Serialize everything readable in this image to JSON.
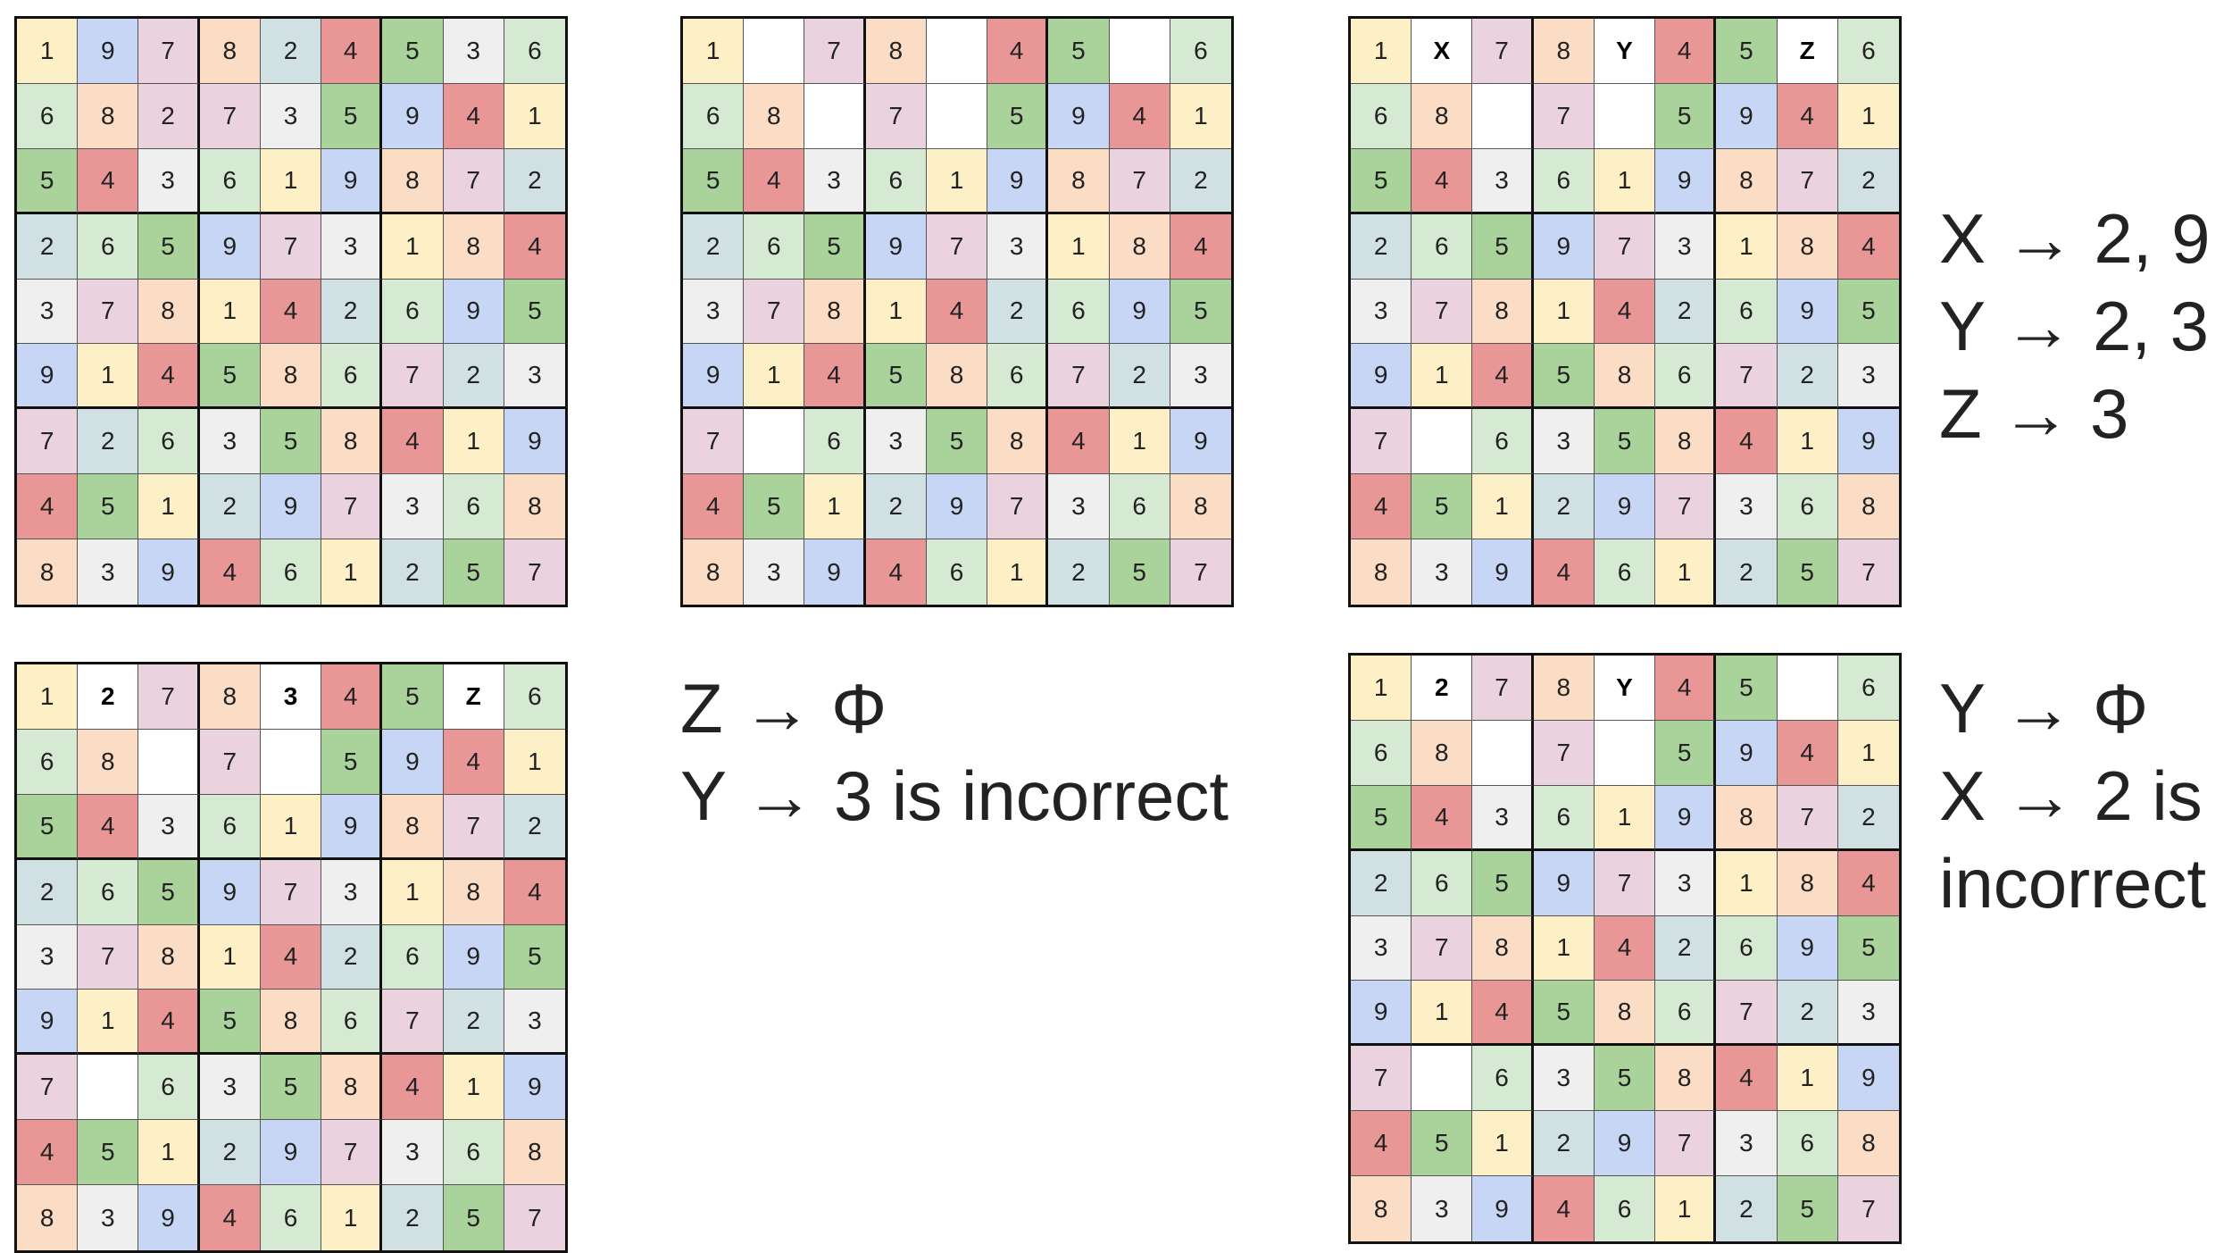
{
  "colors": {
    "Y": "#fdefc6",
    "B": "#c7d6f4",
    "P": "#ead2de",
    "O": "#fbdcc4",
    "T": "#d1e0e3",
    "R": "#e99796",
    "G": "#a9d39b",
    "L": "#d6e9d2",
    "W": "#efefef",
    "X": "#ffffff"
  },
  "grids": [
    {
      "name": "grid-full-solution",
      "values": [
        [
          "1",
          "9",
          "7",
          "8",
          "2",
          "4",
          "5",
          "3",
          "6"
        ],
        [
          "6",
          "8",
          "2",
          "7",
          "3",
          "5",
          "9",
          "4",
          "1"
        ],
        [
          "5",
          "4",
          "3",
          "6",
          "1",
          "9",
          "8",
          "7",
          "2"
        ],
        [
          "2",
          "6",
          "5",
          "9",
          "7",
          "3",
          "1",
          "8",
          "4"
        ],
        [
          "3",
          "7",
          "8",
          "1",
          "4",
          "2",
          "6",
          "9",
          "5"
        ],
        [
          "9",
          "1",
          "4",
          "5",
          "8",
          "6",
          "7",
          "2",
          "3"
        ],
        [
          "7",
          "2",
          "6",
          "3",
          "5",
          "8",
          "4",
          "1",
          "9"
        ],
        [
          "4",
          "5",
          "1",
          "2",
          "9",
          "7",
          "3",
          "6",
          "8"
        ],
        [
          "8",
          "3",
          "9",
          "4",
          "6",
          "1",
          "2",
          "5",
          "7"
        ]
      ],
      "cellColors": [
        "YBPOTRGWL",
        "LOPPWGBRY",
        "GRWLYBOPT",
        "TLGBPWYOR",
        "WPOYRTLBG",
        "BYRGOLPTW",
        "PTLWGORYB",
        "RGYTBPWLO",
        "OWBRLYTGP"
      ]
    },
    {
      "name": "grid-puzzle-blanks",
      "values": [
        [
          "1",
          "",
          "7",
          "8",
          "",
          "4",
          "5",
          "",
          "6"
        ],
        [
          "6",
          "8",
          "",
          "7",
          "",
          "5",
          "9",
          "4",
          "1"
        ],
        [
          "5",
          "4",
          "3",
          "6",
          "1",
          "9",
          "8",
          "7",
          "2"
        ],
        [
          "2",
          "6",
          "5",
          "9",
          "7",
          "3",
          "1",
          "8",
          "4"
        ],
        [
          "3",
          "7",
          "8",
          "1",
          "4",
          "2",
          "6",
          "9",
          "5"
        ],
        [
          "9",
          "1",
          "4",
          "5",
          "8",
          "6",
          "7",
          "2",
          "3"
        ],
        [
          "7",
          "",
          "6",
          "3",
          "5",
          "8",
          "4",
          "1",
          "9"
        ],
        [
          "4",
          "5",
          "1",
          "2",
          "9",
          "7",
          "3",
          "6",
          "8"
        ],
        [
          "8",
          "3",
          "9",
          "4",
          "6",
          "1",
          "2",
          "5",
          "7"
        ]
      ],
      "cellColors": [
        "YXPOXRGXL",
        "LOXPXGBRY",
        "GRWLYBOPT",
        "TLGBPWYOR",
        "WPOYRTLBG",
        "BYRGOLPTW",
        "PXLWGORYB",
        "RGYTBPWLO",
        "OWBRLYTGP"
      ]
    },
    {
      "name": "grid-xyz-variables",
      "values": [
        [
          "1",
          "X",
          "7",
          "8",
          "Y",
          "4",
          "5",
          "Z",
          "6"
        ],
        [
          "6",
          "8",
          "",
          "7",
          "",
          "5",
          "9",
          "4",
          "1"
        ],
        [
          "5",
          "4",
          "3",
          "6",
          "1",
          "9",
          "8",
          "7",
          "2"
        ],
        [
          "2",
          "6",
          "5",
          "9",
          "7",
          "3",
          "1",
          "8",
          "4"
        ],
        [
          "3",
          "7",
          "8",
          "1",
          "4",
          "2",
          "6",
          "9",
          "5"
        ],
        [
          "9",
          "1",
          "4",
          "5",
          "8",
          "6",
          "7",
          "2",
          "3"
        ],
        [
          "7",
          "",
          "6",
          "3",
          "5",
          "8",
          "4",
          "1",
          "9"
        ],
        [
          "4",
          "5",
          "1",
          "2",
          "9",
          "7",
          "3",
          "6",
          "8"
        ],
        [
          "8",
          "3",
          "9",
          "4",
          "6",
          "1",
          "2",
          "5",
          "7"
        ]
      ],
      "boldCells": [
        [
          0,
          1
        ],
        [
          0,
          4
        ],
        [
          0,
          7
        ]
      ],
      "cellColors": [
        "YXPOXRGXL",
        "LOXPXGBRY",
        "GRWLYBOPT",
        "TLGBPWYOR",
        "WPOYRTLBG",
        "BYRGOLPTW",
        "PXLWGORYB",
        "RGYTBPWLO",
        "OWBRLYTGP"
      ]
    },
    {
      "name": "grid-x2-y3-attempt",
      "values": [
        [
          "1",
          "2",
          "7",
          "8",
          "3",
          "4",
          "5",
          "Z",
          "6"
        ],
        [
          "6",
          "8",
          "",
          "7",
          "",
          "5",
          "9",
          "4",
          "1"
        ],
        [
          "5",
          "4",
          "3",
          "6",
          "1",
          "9",
          "8",
          "7",
          "2"
        ],
        [
          "2",
          "6",
          "5",
          "9",
          "7",
          "3",
          "1",
          "8",
          "4"
        ],
        [
          "3",
          "7",
          "8",
          "1",
          "4",
          "2",
          "6",
          "9",
          "5"
        ],
        [
          "9",
          "1",
          "4",
          "5",
          "8",
          "6",
          "7",
          "2",
          "3"
        ],
        [
          "7",
          "",
          "6",
          "3",
          "5",
          "8",
          "4",
          "1",
          "9"
        ],
        [
          "4",
          "5",
          "1",
          "2",
          "9",
          "7",
          "3",
          "6",
          "8"
        ],
        [
          "8",
          "3",
          "9",
          "4",
          "6",
          "1",
          "2",
          "5",
          "7"
        ]
      ],
      "boldCells": [
        [
          0,
          1
        ],
        [
          0,
          4
        ],
        [
          0,
          7
        ]
      ],
      "cellColors": [
        "YXPOXRGXL",
        "LOXPXGBRY",
        "GRWLYBOPT",
        "TLGBPWYOR",
        "WPOYRTLBG",
        "BYRGOLPTW",
        "PXLWGORYB",
        "RGYTBPWLO",
        "OWBRLYTGP"
      ]
    },
    {
      "name": "grid-x2-attempt",
      "values": [
        [
          "1",
          "2",
          "7",
          "8",
          "Y",
          "4",
          "5",
          "",
          "6"
        ],
        [
          "6",
          "8",
          "",
          "7",
          "",
          "5",
          "9",
          "4",
          "1"
        ],
        [
          "5",
          "4",
          "3",
          "6",
          "1",
          "9",
          "8",
          "7",
          "2"
        ],
        [
          "2",
          "6",
          "5",
          "9",
          "7",
          "3",
          "1",
          "8",
          "4"
        ],
        [
          "3",
          "7",
          "8",
          "1",
          "4",
          "2",
          "6",
          "9",
          "5"
        ],
        [
          "9",
          "1",
          "4",
          "5",
          "8",
          "6",
          "7",
          "2",
          "3"
        ],
        [
          "7",
          "",
          "6",
          "3",
          "5",
          "8",
          "4",
          "1",
          "9"
        ],
        [
          "4",
          "5",
          "1",
          "2",
          "9",
          "7",
          "3",
          "6",
          "8"
        ],
        [
          "8",
          "3",
          "9",
          "4",
          "6",
          "1",
          "2",
          "5",
          "7"
        ]
      ],
      "boldCells": [
        [
          0,
          1
        ],
        [
          0,
          4
        ]
      ],
      "cellColors": [
        "YXPOXRGXL",
        "LOXPXGBRY",
        "GRWLYBOPT",
        "TLGBPWYOR",
        "WPOYRTLBG",
        "BYRGOLPTW",
        "PXLWGORYB",
        "RGYTBPWLO",
        "OWBRLYTGP"
      ]
    }
  ],
  "notes": {
    "candidates": {
      "x": "X → 2, 9",
      "y": "Y → 2, 3",
      "z": "Z  → 3"
    },
    "middle": {
      "z_empty": "Z → Φ",
      "y_incorrect": "Y → 3 is incorrect"
    },
    "right": {
      "y_empty": "Y → Φ",
      "x_incorrect_1": "X → 2 is",
      "x_incorrect_2": "incorrect"
    }
  }
}
